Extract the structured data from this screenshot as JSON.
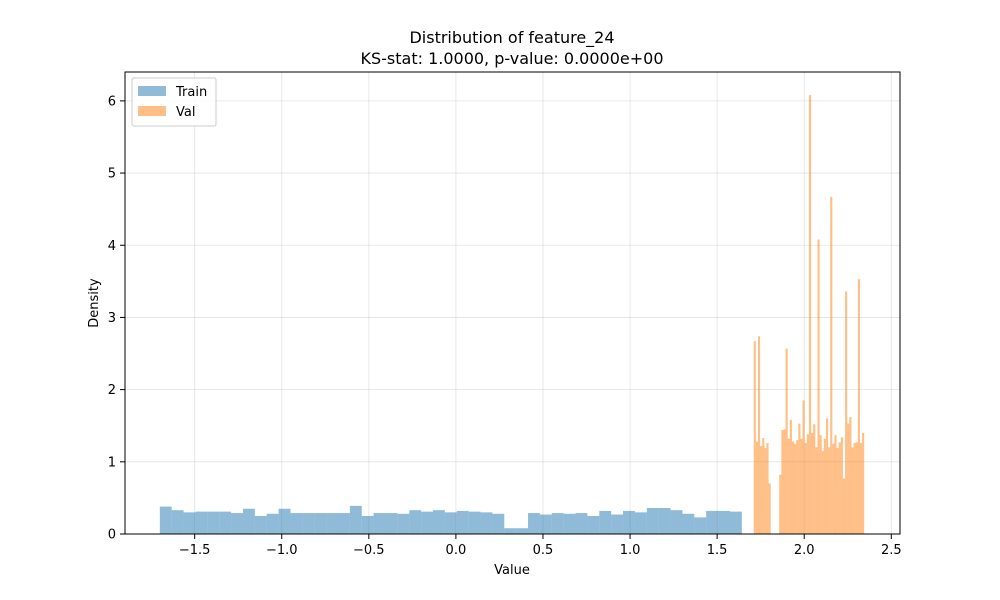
{
  "chart_data": {
    "type": "bar",
    "title_line1": "Distribution of feature_24",
    "title_line2": "KS-stat: 1.0000, p-value: 0.0000e+00",
    "xlabel": "Value",
    "ylabel": "Density",
    "xlim": [
      -1.9,
      2.55
    ],
    "ylim": [
      0,
      6.4
    ],
    "xticks": [
      -1.5,
      -1.0,
      -0.5,
      0.0,
      0.5,
      1.0,
      1.5,
      2.0,
      2.5
    ],
    "xtick_labels": [
      "−1.5",
      "−1.0",
      "−0.5",
      "0.0",
      "0.5",
      "1.0",
      "1.5",
      "2.0",
      "2.5"
    ],
    "yticks": [
      0,
      1,
      2,
      3,
      4,
      5,
      6
    ],
    "ytick_labels": [
      "0",
      "1",
      "2",
      "3",
      "4",
      "5",
      "6"
    ],
    "grid": true,
    "legend_position": "upper-left",
    "series": [
      {
        "name": "Train",
        "color": "#1f77b4",
        "opacity": 0.5,
        "bin_start": -1.7,
        "bin_width": 0.0682,
        "values": [
          0.38,
          0.33,
          0.3,
          0.31,
          0.31,
          0.31,
          0.29,
          0.35,
          0.25,
          0.28,
          0.35,
          0.29,
          0.29,
          0.29,
          0.29,
          0.29,
          0.39,
          0.25,
          0.29,
          0.29,
          0.28,
          0.33,
          0.31,
          0.33,
          0.3,
          0.32,
          0.31,
          0.3,
          0.28,
          0.08,
          0.08,
          0.29,
          0.27,
          0.29,
          0.28,
          0.29,
          0.25,
          0.32,
          0.27,
          0.32,
          0.3,
          0.36,
          0.36,
          0.33,
          0.28,
          0.23,
          0.32,
          0.32,
          0.31
        ]
      },
      {
        "name": "Val",
        "color": "#ff7f0e",
        "opacity": 0.5,
        "bin_start": 1.71,
        "bin_width": 0.0122,
        "values": [
          2.67,
          1.28,
          2.74,
          1.22,
          1.33,
          1.19,
          1.26,
          0.7,
          0,
          0,
          0,
          0,
          0.82,
          1.44,
          1.45,
          2.57,
          1.32,
          1.58,
          1.28,
          1.25,
          1.3,
          1.53,
          1.32,
          1.85,
          1.26,
          1.38,
          6.08,
          1.4,
          1.52,
          1.2,
          4.08,
          1.37,
          1.15,
          1.32,
          1.6,
          1.2,
          4.67,
          1.25,
          1.37,
          1.19,
          1.27,
          1.34,
          0.77,
          3.36,
          1.53,
          1.62,
          1.2,
          1.26,
          1.27,
          3.53,
          1.26,
          1.4
        ]
      }
    ]
  }
}
